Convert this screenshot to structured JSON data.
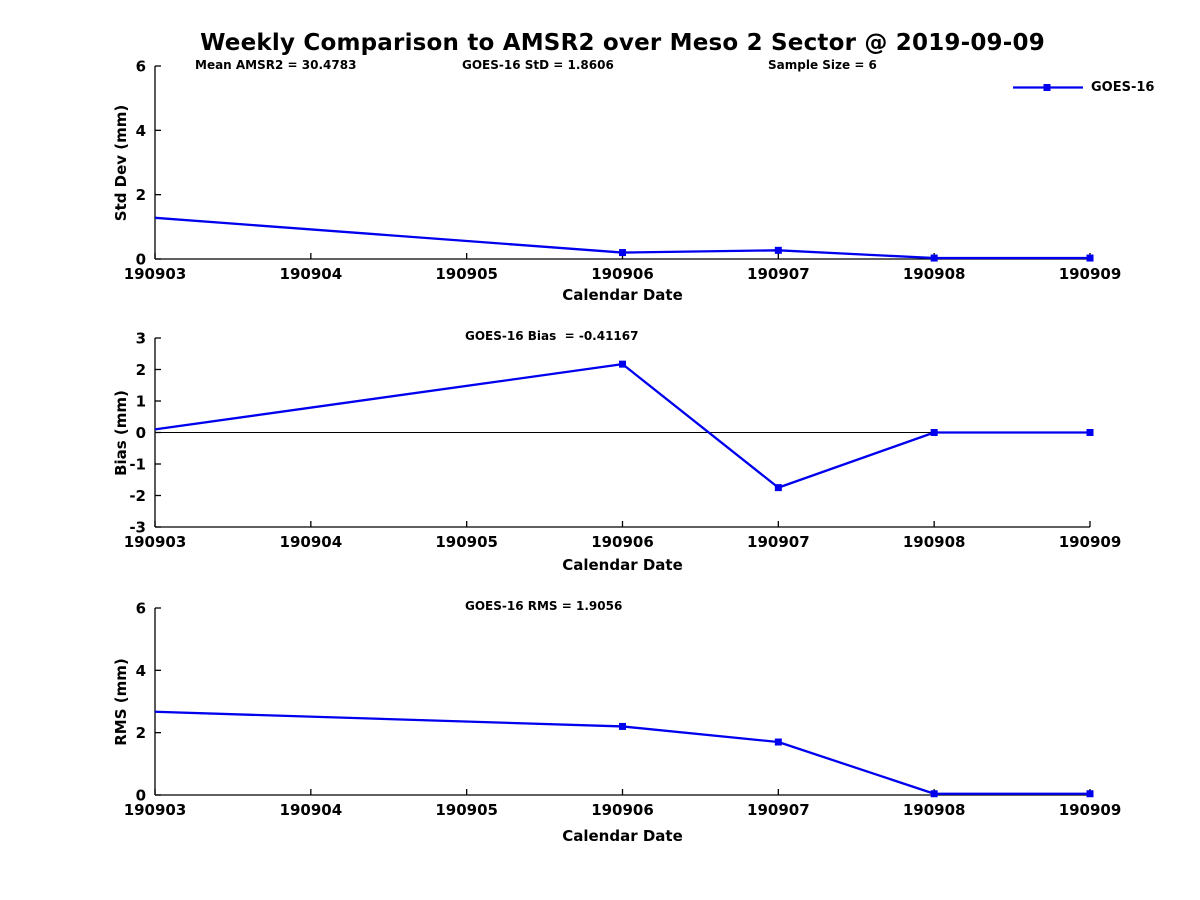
{
  "page": {
    "title": "Weekly Comparison to AMSR2 over Meso 2 Sector @ 2019-09-09"
  },
  "legend": {
    "label": "GOES-16",
    "color": "#0000ee",
    "position": "upper-right"
  },
  "chart_data": [
    {
      "type": "line",
      "annotations": [
        "Mean AMSR2 = 30.4783",
        "GOES-16 StD = 1.8606",
        "Sample Size = 6"
      ],
      "xlabel": "Calendar Date",
      "ylabel": "Std Dev (mm)",
      "xlim": [
        190903,
        190909
      ],
      "ylim": [
        0,
        6
      ],
      "xticks": [
        190903,
        190904,
        190905,
        190906,
        190907,
        190908,
        190909
      ],
      "yticks": [
        0,
        2,
        4,
        6
      ],
      "zero_line": false,
      "grid": false,
      "x": [
        190903,
        190906,
        190907,
        190908,
        190909
      ],
      "series": [
        {
          "name": "GOES-16",
          "color": "#0000ee",
          "marker": "square",
          "values": [
            1.28,
            0.2,
            0.27,
            0.03,
            0.03
          ]
        }
      ]
    },
    {
      "type": "line",
      "annotations": [
        "GOES-16 Bias  = -0.41167"
      ],
      "xlabel": "Calendar Date",
      "ylabel": "Bias (mm)",
      "xlim": [
        190903,
        190909
      ],
      "ylim": [
        -3,
        3
      ],
      "xticks": [
        190903,
        190904,
        190905,
        190906,
        190907,
        190908,
        190909
      ],
      "yticks": [
        -3,
        -2,
        -1,
        0,
        1,
        2,
        3
      ],
      "zero_line": true,
      "grid": false,
      "x": [
        190903,
        190906,
        190907,
        190908,
        190909
      ],
      "series": [
        {
          "name": "GOES-16",
          "color": "#0000ee",
          "marker": "square",
          "values": [
            0.1,
            2.17,
            -1.75,
            0.0,
            0.0
          ]
        }
      ]
    },
    {
      "type": "line",
      "annotations": [
        "GOES-16 RMS = 1.9056"
      ],
      "xlabel": "Calendar Date",
      "ylabel": "RMS (mm)",
      "xlim": [
        190903,
        190909
      ],
      "ylim": [
        0,
        6
      ],
      "xticks": [
        190903,
        190904,
        190905,
        190906,
        190907,
        190908,
        190909
      ],
      "yticks": [
        0,
        2,
        4,
        6
      ],
      "zero_line": false,
      "grid": false,
      "x": [
        190903,
        190906,
        190907,
        190908,
        190909
      ],
      "series": [
        {
          "name": "GOES-16",
          "color": "#0000ee",
          "marker": "square",
          "values": [
            2.67,
            2.2,
            1.7,
            0.04,
            0.04
          ]
        }
      ]
    }
  ]
}
